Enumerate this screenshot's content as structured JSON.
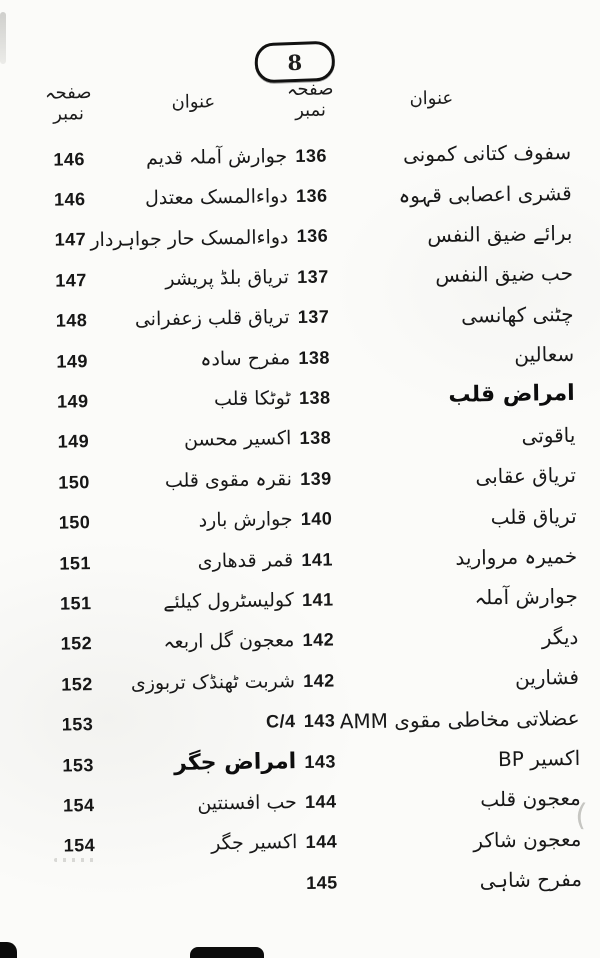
{
  "document": {
    "page_badge": "8",
    "columns": {
      "title_header": "عنوان",
      "page_number_header": "صفحہ نمبر"
    },
    "rows": [
      {
        "left_page": "146",
        "left_title": "جوارش آملہ قدیم",
        "right_page": "136",
        "right_title": "سفوف کتانی کمونی"
      },
      {
        "left_page": "146",
        "left_title": "دواءالمسک معتدل",
        "right_page": "136",
        "right_title": "قشری اعصابی قہوہ"
      },
      {
        "left_page": "147",
        "left_title": "دواءالمسک حار جواہردار",
        "right_page": "136",
        "right_title": "برائے ضیق النفس"
      },
      {
        "left_page": "147",
        "left_title": "تریاق بلڈ پریشر",
        "right_page": "137",
        "right_title": "حب ضیق النفس"
      },
      {
        "left_page": "148",
        "left_title": "تریاق قلب زعفرانی",
        "right_page": "137",
        "right_title": "چٹنی کھانسی"
      },
      {
        "left_page": "149",
        "left_title": "مفرح سادہ",
        "right_page": "138",
        "right_title": "سعالین"
      },
      {
        "left_page": "149",
        "left_title": "ٹوٹکا قلب",
        "right_page": "138",
        "right_title": "امراض قلب",
        "right_bold": true
      },
      {
        "left_page": "149",
        "left_title": "اکسیر محسن",
        "right_page": "138",
        "right_title": "یاقوتی"
      },
      {
        "left_page": "150",
        "left_title": "نقرہ مقوی قلب",
        "right_page": "139",
        "right_title": "تریاق عقابی"
      },
      {
        "left_page": "150",
        "left_title": "جوارش بارد",
        "right_page": "140",
        "right_title": "تریاق قلب"
      },
      {
        "left_page": "151",
        "left_title": "قمر قدھاری",
        "right_page": "141",
        "right_title": "خمیرہ مروارید"
      },
      {
        "left_page": "151",
        "left_title": "کولیسٹرول کیلئے",
        "right_page": "141",
        "right_title": "جوارش آملہ"
      },
      {
        "left_page": "152",
        "left_title": "معجون گل اربعہ",
        "right_page": "142",
        "right_title": "دیگر"
      },
      {
        "left_page": "152",
        "left_title": "شربت ٹھنڈک تربوزی",
        "right_page": "142",
        "right_title": "فشارین"
      },
      {
        "left_page": "153",
        "left_title": "C/4",
        "left_latin": true,
        "right_page": "143",
        "right_title": "عضلاتی مخاطی مقوی AMM"
      },
      {
        "left_page": "153",
        "left_title": "امراض جگر",
        "left_bold": true,
        "right_page": "143",
        "right_title": "اکسیر BP"
      },
      {
        "left_page": "154",
        "left_title": "حب افسنتین",
        "right_page": "144",
        "right_title": "معجون قلب"
      },
      {
        "left_page": "154",
        "left_title": "اکسیر جگر",
        "right_page": "144",
        "right_title": "معجون شاکر"
      },
      {
        "left_page": "",
        "left_title": "",
        "right_page": "145",
        "right_title": "مفرح شاہی"
      }
    ],
    "artifacts": {
      "stray_mark_glyph": "("
    }
  },
  "colors": {
    "ink": "#1c1c1c",
    "paper": "#fbfbf9",
    "badge_border": "#111111"
  }
}
